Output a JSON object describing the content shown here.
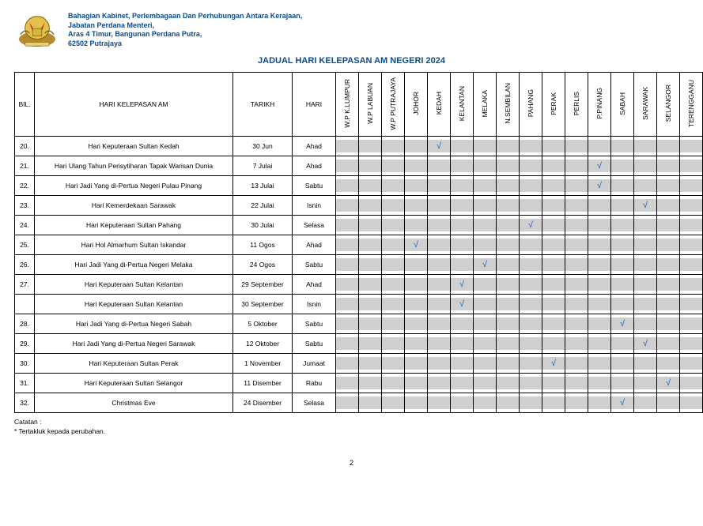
{
  "header": {
    "line1": "Bahagian Kabinet, Perlembagaan Dan Perhubungan Antara  Kerajaan,",
    "line2": "Jabatan Perdana Menteri,",
    "line3": "Aras 4 Timur, Bangunan Perdana Putra,",
    "line4": "62502 Putrajaya"
  },
  "title": "JADUAL HARI KELEPASAN AM NEGERI 2024",
  "col": {
    "bil": "BIL.",
    "name": "HARI KELEPASAN AM",
    "date": "TARIKH",
    "day": "HARI"
  },
  "states": [
    "W.P K.LUMPUR",
    "W.P LABUAN",
    "W.P PUTRAJAYA",
    "JOHOR",
    "KEDAH",
    "KELANTAN",
    "MELAKA",
    "N.SEMBILAN",
    "PAHANG",
    "PERAK",
    "PERLIS",
    "P.PINANG",
    "SABAH",
    "SARAWAK",
    "SELANGOR",
    "TERENGGANU"
  ],
  "rows": [
    {
      "bil": "20.",
      "name": "Hari Keputeraan Sultan Kedah",
      "date": "30 Jun",
      "day": "Ahad",
      "ticks": [
        4
      ]
    },
    {
      "bil": "21.",
      "name": "Hari Ulang Tahun Perisytiharan Tapak Warisan Dunia",
      "date": "7 Julai",
      "day": "Ahad",
      "ticks": [
        11
      ]
    },
    {
      "bil": "22.",
      "name": "Hari Jadi Yang di-Pertua Negeri Pulau Pinang",
      "date": "13 Julai",
      "day": "Sabtu",
      "ticks": [
        11
      ]
    },
    {
      "bil": "23.",
      "name": "Hari Kemerdekaan Sarawak",
      "date": "22 Julai",
      "day": "Isnin",
      "ticks": [
        13
      ]
    },
    {
      "bil": "24.",
      "name": "Hari Keputeraan Sultan Pahang",
      "date": "30 Julai",
      "day": "Selasa",
      "ticks": [
        8
      ]
    },
    {
      "bil": "25.",
      "name": "Hari Hol Almarhum Sultan Iskandar",
      "date": "11 Ogos",
      "day": "Ahad",
      "ticks": [
        3
      ]
    },
    {
      "bil": "26.",
      "name": "Hari Jadi Yang di-Pertua Negeri Melaka",
      "date": "24 Ogos",
      "day": "Sabtu",
      "ticks": [
        6
      ]
    },
    {
      "bil": "27.",
      "name": "Hari Keputeraan Sultan Kelantan",
      "date": "29 September",
      "day": "Ahad",
      "ticks": [
        5
      ]
    },
    {
      "bil": "",
      "name": "Hari Keputeraan Sultan Kelantan",
      "date": "30 September",
      "day": "Isnin",
      "ticks": [
        5
      ]
    },
    {
      "bil": "28.",
      "name": "Hari Jadi Yang di-Pertua Negeri Sabah",
      "date": "5 Oktober",
      "day": "Sabtu",
      "ticks": [
        12
      ]
    },
    {
      "bil": "29.",
      "name": "Hari Jadi Yang di-Pertua Negeri Sarawak",
      "date": "12 Oktober",
      "day": "Sabtu",
      "ticks": [
        13
      ]
    },
    {
      "bil": "30.",
      "name": "Hari Keputeraan Sultan Perak",
      "date": "1 November",
      "day": "Jumaat",
      "ticks": [
        9
      ]
    },
    {
      "bil": "31.",
      "name": "Hari Keputeraan Sultan Selangor",
      "date": "11 Disember",
      "day": "Rabu",
      "ticks": [
        14
      ]
    },
    {
      "bil": "32.",
      "name": "Christmas  Eve",
      "date": "24 Disember",
      "day": "Selasa",
      "ticks": [
        12
      ]
    }
  ],
  "footnote": {
    "l1": "Catatan :",
    "l2": "*   Tertakluk kepada perubahan."
  },
  "page": "2",
  "style": {
    "accent": "#0a4b8c",
    "cell_grey": "#cfcfcf",
    "tick_color": "#0a60c2"
  }
}
